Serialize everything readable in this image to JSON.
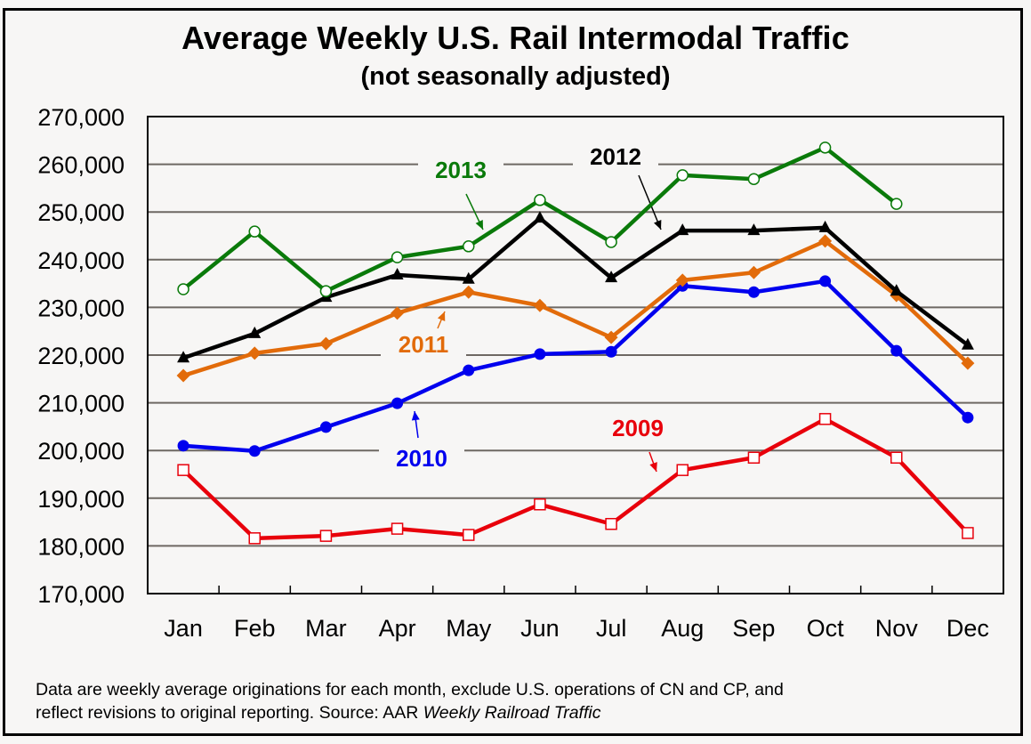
{
  "chart_data": {
    "type": "line",
    "title": "Average Weekly U.S. Rail Intermodal Traffic",
    "subtitle": "(not seasonally adjusted)",
    "xlabel": "",
    "ylabel": "",
    "ylim": [
      170000,
      270000
    ],
    "yticks": [
      170000,
      180000,
      190000,
      200000,
      210000,
      220000,
      230000,
      240000,
      250000,
      260000,
      270000
    ],
    "ytick_labels": [
      "170,000",
      "180,000",
      "190,000",
      "200,000",
      "210,000",
      "220,000",
      "230,000",
      "240,000",
      "250,000",
      "260,000",
      "270,000"
    ],
    "categories": [
      "Jan",
      "Feb",
      "Mar",
      "Apr",
      "May",
      "Jun",
      "Jul",
      "Aug",
      "Sep",
      "Oct",
      "Nov",
      "Dec"
    ],
    "grid": true,
    "legend": "inline labels with arrows",
    "series": [
      {
        "name": "2009",
        "color": "#e8000b",
        "marker": "open-square",
        "values": [
          195900,
          181600,
          182100,
          183600,
          182300,
          188700,
          184600,
          195900,
          198500,
          206600,
          198500,
          182700
        ]
      },
      {
        "name": "2010",
        "color": "#0000ee",
        "marker": "filled-circle",
        "values": [
          201000,
          199900,
          204900,
          209900,
          216800,
          220200,
          220700,
          234500,
          233200,
          235500,
          220900,
          206900
        ]
      },
      {
        "name": "2011",
        "color": "#e26b0a",
        "marker": "filled-diamond",
        "values": [
          215700,
          220400,
          222400,
          228800,
          233200,
          230400,
          223700,
          235700,
          237300,
          243900,
          232500,
          218300
        ]
      },
      {
        "name": "2012",
        "color": "#000000",
        "marker": "filled-triangle",
        "values": [
          219400,
          224500,
          232100,
          236800,
          235900,
          248700,
          236200,
          246100,
          246100,
          246700,
          233400,
          222100
        ]
      },
      {
        "name": "2013",
        "color": "#0a7a0a",
        "marker": "open-circle",
        "values": [
          233800,
          245900,
          233400,
          240500,
          242800,
          252500,
          243700,
          257700,
          256900,
          263500,
          251700,
          null
        ]
      }
    ],
    "annotations": [
      {
        "text": "2013",
        "color": "#0a7a0a",
        "points_to": "May"
      },
      {
        "text": "2012",
        "color": "#000000",
        "points_to": "Aug"
      },
      {
        "text": "2011",
        "color": "#e26b0a",
        "points_to": "May"
      },
      {
        "text": "2010",
        "color": "#0000ee",
        "points_to": "Apr"
      },
      {
        "text": "2009",
        "color": "#e8000b",
        "points_to": "Aug"
      }
    ]
  },
  "footnote": {
    "line1": "Data are weekly average originations for each month, exclude U.S. operations of CN and CP, and",
    "line2_prefix": "reflect revisions to original reporting.  Source: AAR ",
    "line2_source": "Weekly Railroad Traffic"
  }
}
